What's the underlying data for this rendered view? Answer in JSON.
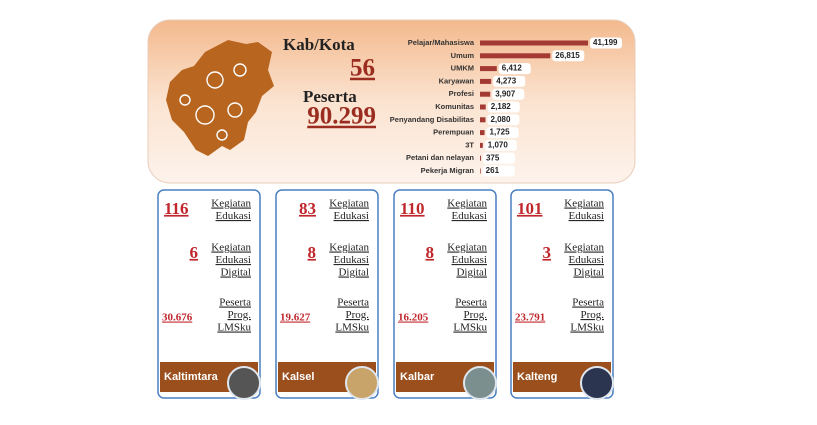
{
  "header": {
    "kab_label": "Kab/Kota",
    "kab_value": "56",
    "peserta_label": "Peserta",
    "peserta_value": "90.299"
  },
  "chart_data": {
    "type": "hbar",
    "categories": [
      "Pelajar/Mahasiswa",
      "Umum",
      "UMKM",
      "Karyawan",
      "Profesi",
      "Komunitas",
      "Penyandang Disabilitas",
      "Perempuan",
      "3T",
      "Petani dan nelayan",
      "Pekerja Migran"
    ],
    "values": [
      41199,
      26815,
      6412,
      4273,
      3907,
      2182,
      2080,
      1725,
      1070,
      375,
      261
    ],
    "value_labels": [
      "41,199",
      "26,815",
      "6,412",
      "4,273",
      "3,907",
      "2,182",
      "2,080",
      "1,725",
      "1,070",
      "375",
      "261"
    ],
    "color": "#a33a33"
  },
  "cards": [
    {
      "region": "Kaltimtara",
      "stats": [
        {
          "value": "116",
          "label": [
            "Kegiatan",
            "Edukasi"
          ]
        },
        {
          "value": "6",
          "label": [
            "Kegiatan",
            "Edukasi",
            "Digital"
          ]
        },
        {
          "value": "30.676",
          "label": [
            "Peserta",
            "Prog.",
            "LMSku"
          ]
        }
      ]
    },
    {
      "region": "Kalsel",
      "stats": [
        {
          "value": "83",
          "label": [
            "Kegiatan",
            "Edukasi"
          ]
        },
        {
          "value": "8",
          "label": [
            "Kegiatan",
            "Edukasi",
            "Digital"
          ]
        },
        {
          "value": "19.627",
          "label": [
            "Peserta",
            "Prog.",
            "LMSku"
          ]
        }
      ]
    },
    {
      "region": "Kalbar",
      "stats": [
        {
          "value": "110",
          "label": [
            "Kegiatan",
            "Edukasi"
          ]
        },
        {
          "value": "8",
          "label": [
            "Kegiatan",
            "Edukasi",
            "Digital"
          ]
        },
        {
          "value": "16.205",
          "label": [
            "Peserta",
            "Prog.",
            "LMSku"
          ]
        }
      ]
    },
    {
      "region": "Kalteng",
      "stats": [
        {
          "value": "101",
          "label": [
            "Kegiatan",
            "Edukasi"
          ]
        },
        {
          "value": "3",
          "label": [
            "Kegiatan",
            "Edukasi",
            "Digital"
          ]
        },
        {
          "value": "23.791",
          "label": [
            "Peserta",
            "Prog.",
            "LMSku"
          ]
        }
      ]
    }
  ]
}
